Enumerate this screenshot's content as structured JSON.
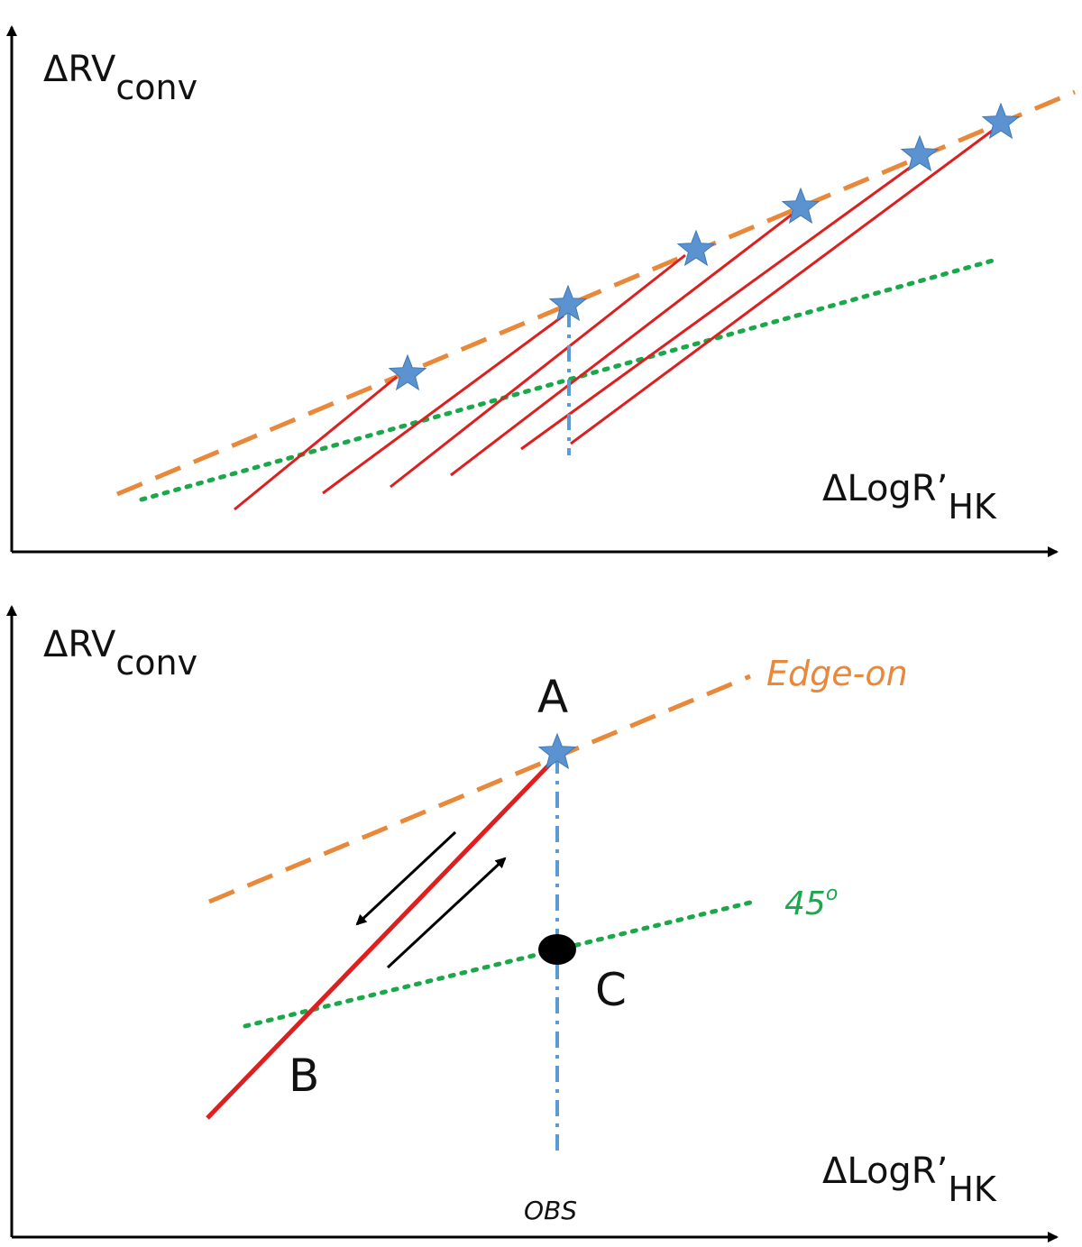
{
  "colors": {
    "axis": "#000000",
    "edge_on": "#e8883b",
    "inclined_45": "#1aa84a",
    "track": "#dd1f1f",
    "star": "#5b93d1",
    "obs_line": "#5b9bd5",
    "point_c": "#000000"
  },
  "top_panel": {
    "y_label": "ΔRV",
    "y_label_sub": "conv",
    "x_label": "ΔLogR’",
    "x_label_sub": "HK",
    "star_icon": "star-icon",
    "star_count": 6
  },
  "bottom_panel": {
    "y_label": "ΔRV",
    "y_label_sub": "conv",
    "x_label": "ΔLogR’",
    "x_label_sub": "HK",
    "edge_on_label": "Edge-on",
    "inclination_label": "45",
    "inclination_sup": "o",
    "point_a": "A",
    "point_b": "B",
    "point_c": "C",
    "obs_label": "OBS"
  }
}
